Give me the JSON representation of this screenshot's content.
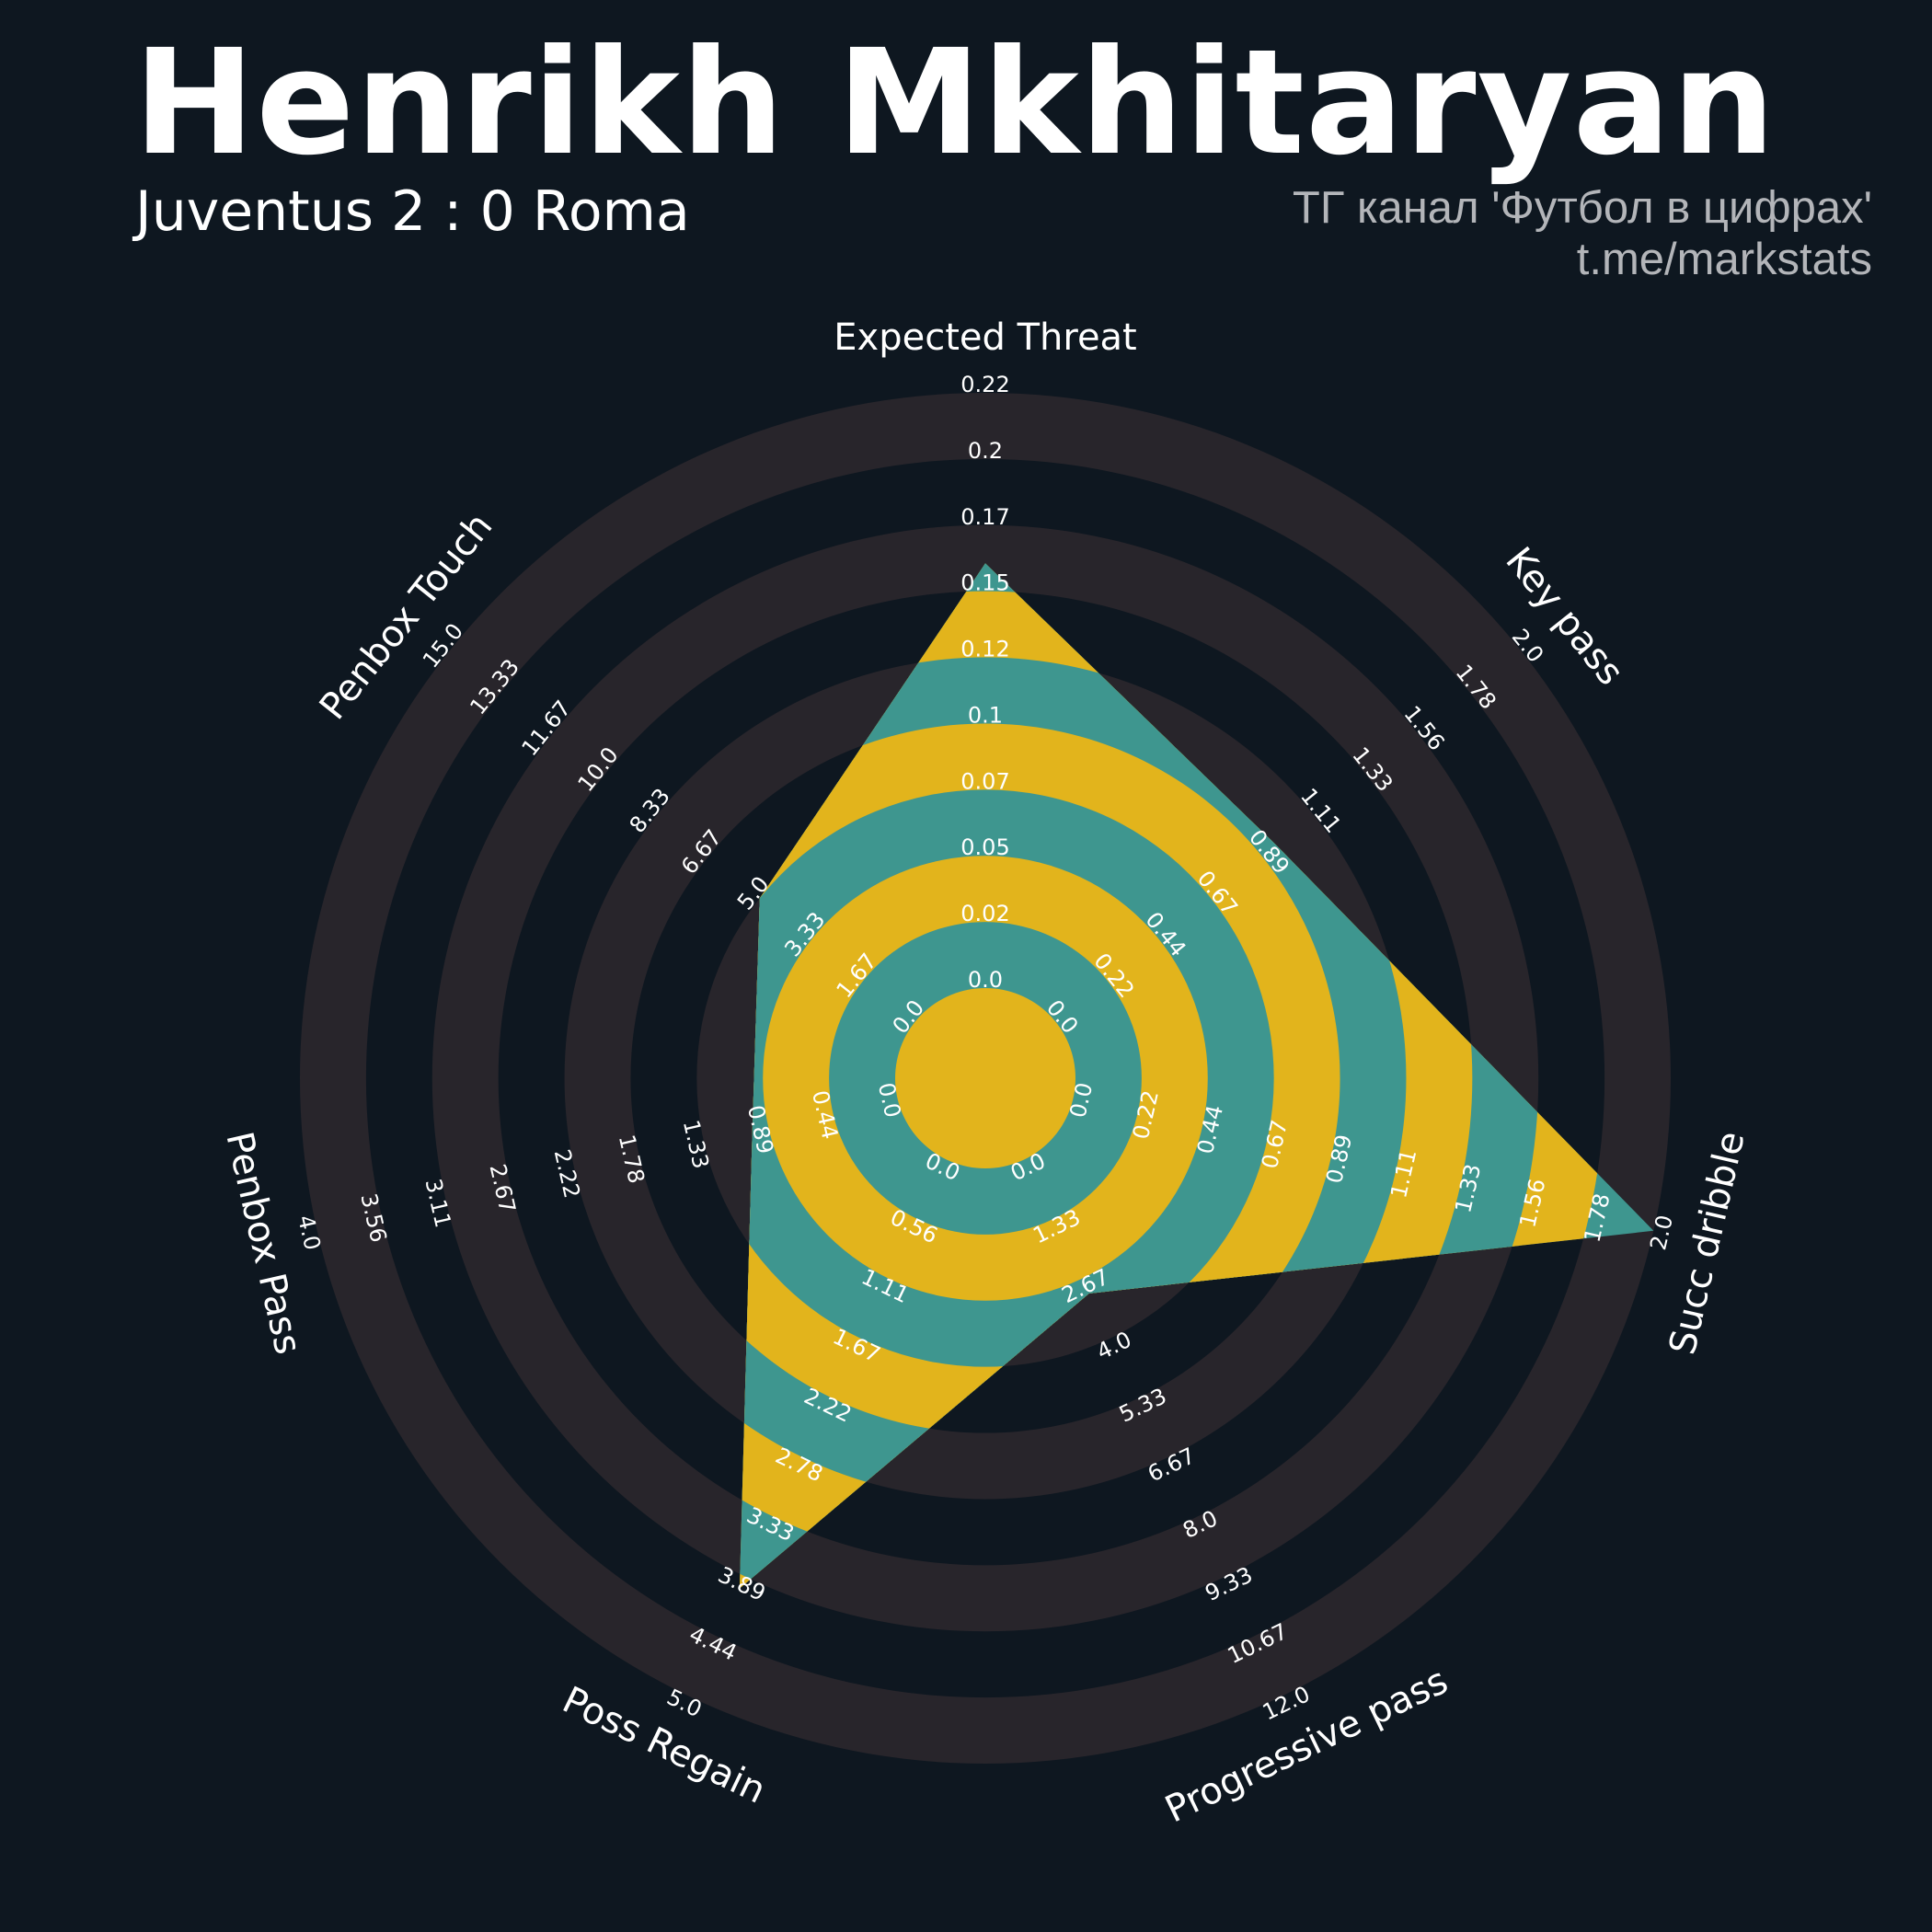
{
  "header": {
    "title": "Henrikh Mkhitaryan",
    "subtitle": "Juventus 2 : 0 Roma",
    "credit_line1": "ТГ канал 'Футбол в цифрах'",
    "credit_line2": "t.me/markstats"
  },
  "colors": {
    "background": "#0e1720",
    "ring_even": "#28252b",
    "ring_odd": "#0e1720",
    "radar_even": "#3e968f",
    "radar_odd": "#e2b41c",
    "text": "#ffffff"
  },
  "chart_data": {
    "type": "radar",
    "params": [
      "Expected Threat",
      "Key pass",
      "Succ dribble",
      "Progressive pass",
      "Poss Regain",
      "Penbox Pass",
      "Penbox Touch"
    ],
    "ranges": [
      [
        0,
        0.22
      ],
      [
        0,
        2.0
      ],
      [
        0,
        2.0
      ],
      [
        0,
        12.0
      ],
      [
        0,
        5.0
      ],
      [
        0,
        4.0
      ],
      [
        0,
        15.0
      ]
    ],
    "values": [
      0.157,
      0.95,
      2.0,
      3.0,
      4.0,
      1.0,
      5.0
    ],
    "tick_labels": [
      [
        "0.0",
        "0.02",
        "0.05",
        "0.07",
        "0.1",
        "0.12",
        "0.15",
        "0.17",
        "0.2",
        "0.22"
      ],
      [
        "0.0",
        "0.22",
        "0.44",
        "0.67",
        "0.89",
        "1.11",
        "1.33",
        "1.56",
        "1.78",
        "2.0"
      ],
      [
        "0.0",
        "0.22",
        "0.44",
        "0.67",
        "0.89",
        "1.11",
        "1.33",
        "1.56",
        "1.78",
        "2.0"
      ],
      [
        "0.0",
        "1.33",
        "2.67",
        "4.0",
        "5.33",
        "6.67",
        "8.0",
        "9.33",
        "10.67",
        "12.0"
      ],
      [
        "0.0",
        "0.56",
        "1.11",
        "1.67",
        "2.22",
        "2.78",
        "3.33",
        "3.89",
        "4.44",
        "5.0"
      ],
      [
        "0.0",
        "0.44",
        "0.89",
        "1.33",
        "1.78",
        "2.22",
        "2.67",
        "3.11",
        "3.56",
        "4.0"
      ],
      [
        "0.0",
        "1.67",
        "3.33",
        "5.0",
        "6.67",
        "8.33",
        "10.0",
        "11.67",
        "13.33",
        "15.0"
      ]
    ],
    "direction": "clockwise",
    "start": "top"
  }
}
